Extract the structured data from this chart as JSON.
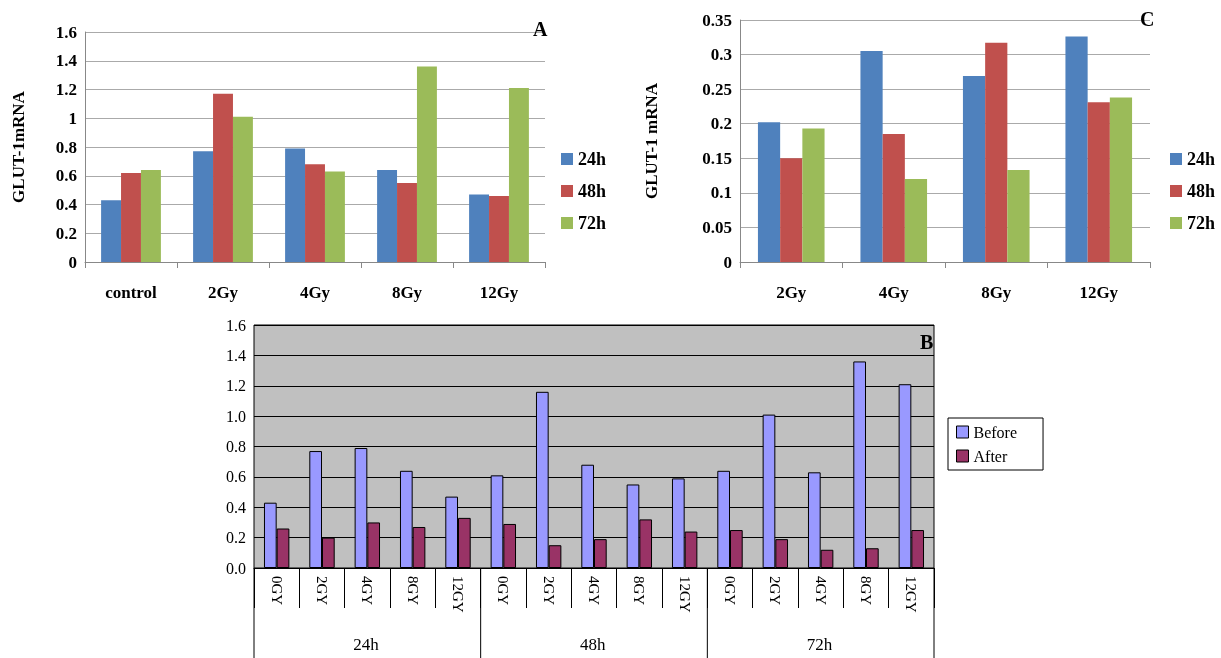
{
  "chart_data": [
    {
      "type": "bar",
      "title": "A",
      "ylabel": "GLUT-1mRNA",
      "categories": [
        "control",
        "2Gy",
        "4Gy",
        "8Gy",
        "12Gy"
      ],
      "series": [
        {
          "name": "24h",
          "color": "#4f81bd",
          "values": [
            0.43,
            0.77,
            0.79,
            0.64,
            0.47
          ]
        },
        {
          "name": "48h",
          "color": "#c0504d",
          "values": [
            0.62,
            1.17,
            0.68,
            0.55,
            0.46
          ]
        },
        {
          "name": "72h",
          "color": "#9bbb59",
          "values": [
            0.64,
            1.01,
            0.63,
            1.36,
            1.21
          ]
        }
      ],
      "ylim": [
        0,
        1.6
      ],
      "yticks": [
        0,
        0.2,
        0.4,
        0.6,
        0.8,
        1,
        1.2,
        1.4,
        1.6
      ],
      "grid": "y",
      "legend": "right"
    },
    {
      "type": "bar",
      "title": "C",
      "ylabel": "GLUT-1 mRNA",
      "categories": [
        "2Gy",
        "4Gy",
        "8Gy",
        "12Gy"
      ],
      "series": [
        {
          "name": "24h",
          "color": "#4f81bd",
          "values": [
            0.202,
            0.305,
            0.269,
            0.326
          ]
        },
        {
          "name": "48h",
          "color": "#c0504d",
          "values": [
            0.15,
            0.185,
            0.317,
            0.231
          ]
        },
        {
          "name": "72h",
          "color": "#9bbb59",
          "values": [
            0.193,
            0.12,
            0.133,
            0.238
          ]
        }
      ],
      "ylim": [
        0,
        0.35
      ],
      "yticks": [
        0,
        0.05,
        0.1,
        0.15,
        0.2,
        0.25,
        0.3,
        0.35
      ],
      "grid": "y",
      "legend": "right"
    },
    {
      "type": "bar",
      "title": "B",
      "categories": [
        "0GY",
        "2GY",
        "4GY",
        "8GY",
        "12GY",
        "0GY",
        "2GY",
        "4GY",
        "8GY",
        "12GY",
        "0GY",
        "2GY",
        "4GY",
        "8GY",
        "12GY"
      ],
      "annotations": [
        "24h",
        "48h",
        "72h"
      ],
      "series": [
        {
          "name": "Before",
          "color": "#9999ff",
          "values": [
            0.43,
            0.77,
            0.79,
            0.64,
            0.47,
            0.61,
            1.16,
            0.68,
            0.55,
            0.59,
            0.64,
            1.01,
            0.63,
            1.36,
            1.21
          ]
        },
        {
          "name": "After",
          "color": "#993366",
          "values": [
            0.26,
            0.2,
            0.3,
            0.27,
            0.33,
            0.29,
            0.15,
            0.19,
            0.32,
            0.24,
            0.25,
            0.19,
            0.12,
            0.13,
            0.25
          ]
        }
      ],
      "ylim": [
        0,
        1.6
      ],
      "yticks": [
        {
          "value": 0,
          "label": "0.0"
        },
        {
          "value": 0.2,
          "label": "0.2"
        },
        {
          "value": 0.4,
          "label": "0.4"
        },
        {
          "value": 0.6,
          "label": "0.6"
        },
        {
          "value": 0.8,
          "label": "0.8"
        },
        {
          "value": 1,
          "label": "1.0"
        },
        {
          "value": 1.2,
          "label": "1.2"
        },
        {
          "value": 1.4,
          "label": "1.4"
        },
        {
          "value": 1.6,
          "label": "1.6"
        }
      ],
      "grid": "y",
      "legend": "right"
    }
  ]
}
